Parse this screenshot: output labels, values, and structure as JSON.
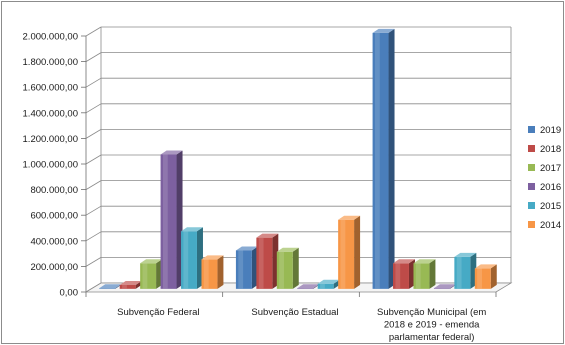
{
  "chart_data": {
    "type": "bar",
    "title": "",
    "xlabel": "",
    "ylabel": "",
    "ylim": [
      0,
      2000000
    ],
    "ytick_step": 200000,
    "ytick_labels": [
      "0,00",
      "200.000,00",
      "400.000,00",
      "600.000,00",
      "800.000,00",
      "1.000.000,00",
      "1.200.000,00",
      "1.400.000,00",
      "1.600.000,00",
      "1.800.000,00",
      "2.000.000,00"
    ],
    "grid": true,
    "legend_position": "right",
    "categories": [
      [
        "Subvenção Federal"
      ],
      [
        "Subvenção Estadual"
      ],
      [
        "Subvenção Municipal (em",
        "2018 e 2019 - emenda",
        "parlamentar federal)"
      ]
    ],
    "series": [
      {
        "name": "2019",
        "color": "#4a7ebb",
        "values": [
          5000,
          300000,
          2000000
        ]
      },
      {
        "name": "2018",
        "color": "#be4b48",
        "values": [
          30000,
          400000,
          200000
        ]
      },
      {
        "name": "2017",
        "color": "#98b954",
        "values": [
          200000,
          290000,
          200000
        ]
      },
      {
        "name": "2016",
        "color": "#7d60a0",
        "values": [
          1050000,
          5000,
          5000
        ]
      },
      {
        "name": "2015",
        "color": "#46aac5",
        "values": [
          450000,
          40000,
          250000
        ]
      },
      {
        "name": "2014",
        "color": "#f79646",
        "values": [
          230000,
          540000,
          160000
        ]
      }
    ]
  }
}
